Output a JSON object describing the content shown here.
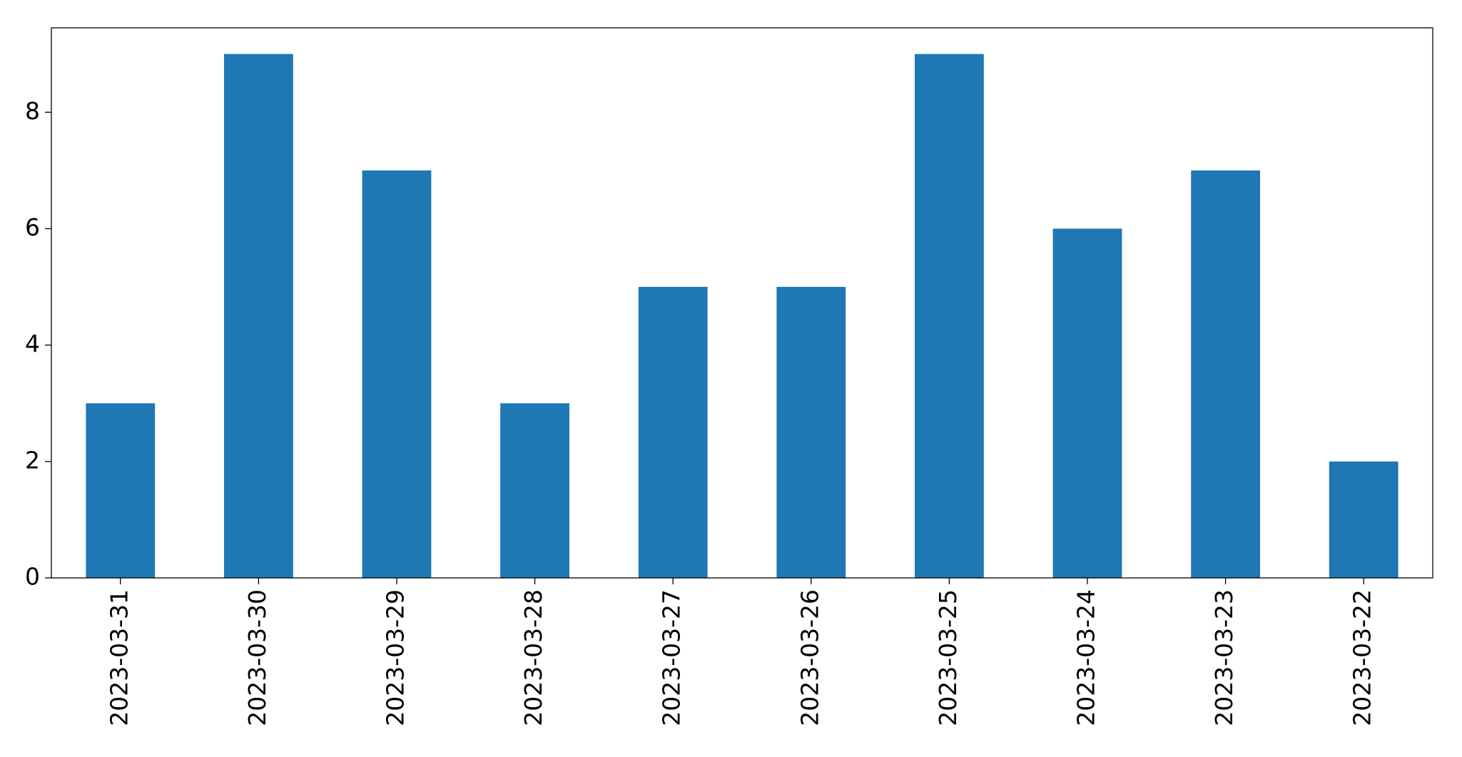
{
  "chart_data": {
    "type": "bar",
    "categories": [
      "2023-03-31",
      "2023-03-30",
      "2023-03-29",
      "2023-03-28",
      "2023-03-27",
      "2023-03-26",
      "2023-03-25",
      "2023-03-24",
      "2023-03-23",
      "2023-03-22"
    ],
    "values": [
      3,
      9,
      7,
      3,
      5,
      5,
      9,
      6,
      7,
      2
    ],
    "color": "#1f77b4",
    "ylim": [
      0,
      9.45
    ],
    "yticks": [
      0,
      2,
      4,
      6,
      8
    ],
    "grid": false
  }
}
